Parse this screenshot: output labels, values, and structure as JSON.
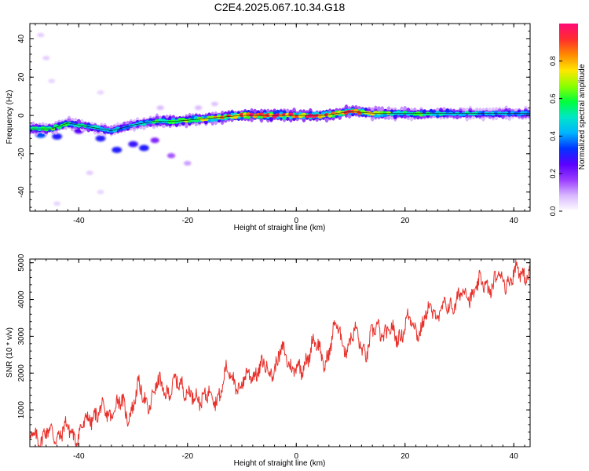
{
  "title": "C2E4.2025.067.10.34.G18",
  "colors": {
    "background": "#ffffff",
    "axis": "#000000",
    "snr_line": "#e8302a",
    "colormap": [
      "#ffffff",
      "#d9b8ff",
      "#9a3cff",
      "#5a00ff",
      "#0033ff",
      "#00b4ff",
      "#00e6c8",
      "#00ff3c",
      "#8cff00",
      "#ffe600",
      "#ff8a00",
      "#ff2d2d",
      "#ff0a78"
    ]
  },
  "chart_data": [
    {
      "type": "heatmap",
      "xlabel": "Height of straight line (km)",
      "ylabel": "Frequency (Hz)",
      "xlim": [
        -49,
        43
      ],
      "ylim": [
        -50,
        48
      ],
      "xticks": [
        -40,
        -20,
        0,
        20,
        40
      ],
      "xtick_labels": [
        "-40",
        "-20",
        "0",
        "20",
        "40"
      ],
      "yticks": [
        -40,
        -20,
        0,
        20,
        40
      ],
      "ytick_labels": [
        "-40",
        "-20",
        "0",
        "20",
        "40"
      ],
      "colorbar": {
        "label": "Normalized spectral amplitude",
        "range": [
          0,
          1
        ],
        "ticks": [
          0.0,
          0.2,
          0.4,
          0.6,
          0.8
        ],
        "tick_labels": [
          "0.0",
          "0.2",
          "0.4",
          "0.6",
          "0.8"
        ]
      },
      "ridge": {
        "x": [
          -48,
          -45,
          -42,
          -38,
          -34,
          -30,
          -26,
          -22,
          -18,
          -14,
          -10,
          -5,
          0,
          5,
          10,
          15,
          20,
          25,
          30,
          35,
          40,
          43
        ],
        "frequency": [
          -7,
          -7,
          -4,
          -6,
          -8,
          -5,
          -3,
          -3,
          -2,
          -1,
          0,
          0,
          0,
          0,
          2,
          1,
          1,
          1,
          1,
          1,
          1,
          1
        ],
        "amplitude": [
          0.55,
          0.6,
          0.55,
          0.5,
          0.45,
          0.45,
          0.55,
          0.7,
          0.7,
          0.8,
          0.95,
          0.95,
          0.9,
          0.95,
          0.9,
          0.7,
          0.6,
          0.55,
          0.5,
          0.45,
          0.45,
          0.45
        ]
      },
      "blobs": [
        {
          "x": -47,
          "y": -10,
          "amp": 0.35
        },
        {
          "x": -44,
          "y": -11,
          "amp": 0.3
        },
        {
          "x": -40,
          "y": -8,
          "amp": 0.25
        },
        {
          "x": -36,
          "y": -12,
          "amp": 0.3
        },
        {
          "x": -33,
          "y": -18,
          "amp": 0.3
        },
        {
          "x": -30,
          "y": -15,
          "amp": 0.28
        },
        {
          "x": -28,
          "y": -17,
          "amp": 0.3
        },
        {
          "x": -26,
          "y": -13,
          "amp": 0.2
        },
        {
          "x": -23,
          "y": -21,
          "amp": 0.15
        },
        {
          "x": -20,
          "y": -25,
          "amp": 0.1
        },
        {
          "x": -38,
          "y": -30,
          "amp": 0.06
        },
        {
          "x": -46,
          "y": 30,
          "amp": 0.06
        },
        {
          "x": -47,
          "y": 42,
          "amp": 0.06
        },
        {
          "x": -45,
          "y": 18,
          "amp": 0.05
        },
        {
          "x": -44,
          "y": -46,
          "amp": 0.05
        },
        {
          "x": -36,
          "y": -40,
          "amp": 0.05
        },
        {
          "x": -36,
          "y": 12,
          "amp": 0.05
        },
        {
          "x": -18,
          "y": 4,
          "amp": 0.08
        },
        {
          "x": -15,
          "y": 6,
          "amp": 0.07
        },
        {
          "x": -25,
          "y": 4,
          "amp": 0.08
        }
      ]
    },
    {
      "type": "line",
      "xlabel": "Height of straight line (km)",
      "ylabel": "SNR (10 * v/v)",
      "xlim": [
        -49,
        43
      ],
      "ylim": [
        0,
        5100
      ],
      "xticks": [
        -40,
        -20,
        0,
        20,
        40
      ],
      "xtick_labels": [
        "-40",
        "-20",
        "0",
        "20",
        "40"
      ],
      "yticks": [
        1000,
        2000,
        3000,
        4000,
        5000
      ],
      "ytick_labels": [
        "1000",
        "2000",
        "3000",
        "4000",
        "5000"
      ],
      "series": [
        {
          "x": [
            -49,
            -47,
            -45,
            -43,
            -41,
            -39,
            -37,
            -35,
            -33,
            -31,
            -29,
            -27,
            -25,
            -23,
            -21,
            -19,
            -17,
            -15,
            -13,
            -11,
            -9,
            -7,
            -5,
            -3,
            -1,
            0,
            1,
            3,
            5,
            7,
            9,
            11,
            13,
            15,
            17,
            19,
            21,
            23,
            25,
            27,
            29,
            31,
            33,
            35,
            37,
            39,
            41,
            43
          ],
          "y": [
            150,
            350,
            300,
            450,
            350,
            500,
            1000,
            800,
            1200,
            900,
            1500,
            1200,
            1700,
            1500,
            1800,
            1200,
            1500,
            1200,
            2000,
            1700,
            1800,
            2200,
            2000,
            2500,
            2300,
            2200,
            1900,
            3000,
            2200,
            3200,
            2800,
            3000,
            2600,
            3300,
            3000,
            3100,
            3400,
            3200,
            3800,
            3600,
            4000,
            4100,
            4300,
            4400,
            4500,
            4600,
            4700,
            4800
          ],
          "noise": 420
        }
      ]
    }
  ]
}
